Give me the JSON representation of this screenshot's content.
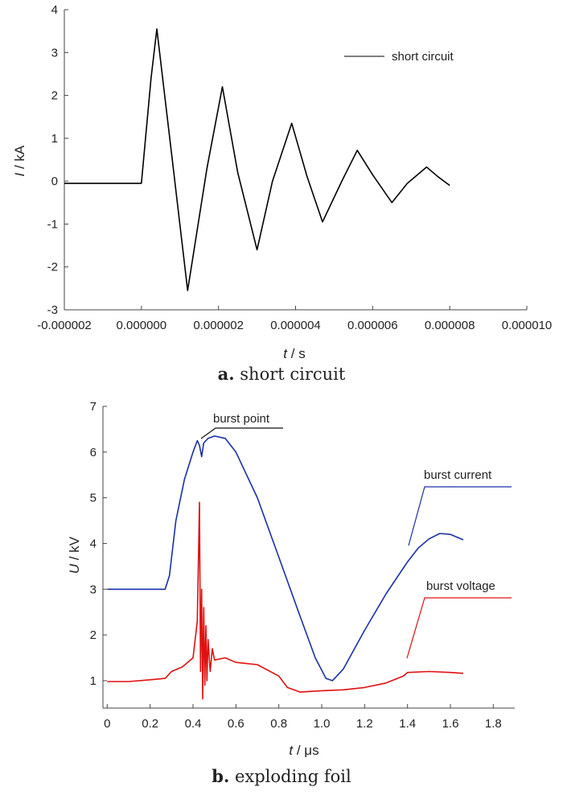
{
  "chart_data": [
    {
      "type": "line",
      "caption_letter": "a.",
      "caption_text": "short circuit",
      "xlabel_var": "t",
      "xlabel_unit": " / s",
      "ylabel_var": "I",
      "ylabel_unit": " / kA",
      "xlim": [
        -2e-06,
        1e-05
      ],
      "ylim": [
        -3,
        4
      ],
      "xticks": [
        "-0.000002",
        "0.000000",
        "0.000002",
        "0.000004",
        "0.000006",
        "0.000008",
        "0.000010"
      ],
      "yticks": [
        "-3",
        "-2",
        "-1",
        "0",
        "1",
        "2",
        "3",
        "4"
      ],
      "legend_position": "top-right",
      "series": [
        {
          "name": "short circuit",
          "color": "#000000",
          "x": [
            -2e-06,
            0.0,
            2.5e-07,
            4e-07,
            8e-07,
            1.2e-06,
            1.7e-06,
            2.1e-06,
            2.5e-06,
            3e-06,
            3.4e-06,
            3.9e-06,
            4.3e-06,
            4.7e-06,
            5.2e-06,
            5.6e-06,
            6e-06,
            6.5e-06,
            6.9e-06,
            7.4e-06,
            7.7e-06,
            8e-06
          ],
          "y": [
            -0.05,
            -0.05,
            2.4,
            3.55,
            0.5,
            -2.55,
            0.3,
            2.2,
            0.2,
            -1.6,
            0.0,
            1.35,
            0.1,
            -0.95,
            0.0,
            0.72,
            0.15,
            -0.5,
            -0.05,
            0.33,
            0.1,
            -0.1
          ]
        }
      ]
    },
    {
      "type": "line",
      "caption_letter": "b.",
      "caption_text": "exploding foil",
      "xlabel_var": "t",
      "xlabel_unit": " / μs",
      "ylabel_var": "U",
      "ylabel_unit": " / kV",
      "xlim": [
        -0.02,
        1.9
      ],
      "ylim": [
        0.4,
        7.0
      ],
      "xticks": [
        "0",
        "0.2",
        "0.4",
        "0.6",
        "0.8",
        "1.0",
        "1.2",
        "1.4",
        "1.6",
        "1.8"
      ],
      "yticks": [
        "1",
        "2",
        "3",
        "4",
        "5",
        "6",
        "7"
      ],
      "annotations": [
        {
          "text": "burst point",
          "x": 0.44,
          "y": 6.35
        },
        {
          "text": "burst current",
          "x": 1.4,
          "y": 3.8
        },
        {
          "text": "burst voltage",
          "x": 1.39,
          "y": 1.2
        }
      ],
      "series": [
        {
          "name": "burst current",
          "color": "#1c2fa8",
          "x": [
            0.0,
            0.27,
            0.29,
            0.32,
            0.36,
            0.4,
            0.42,
            0.43,
            0.44,
            0.45,
            0.47,
            0.5,
            0.55,
            0.6,
            0.7,
            0.8,
            0.9,
            0.97,
            1.02,
            1.05,
            1.1,
            1.2,
            1.3,
            1.4,
            1.45,
            1.5,
            1.55,
            1.6,
            1.66
          ],
          "y": [
            3.0,
            3.0,
            3.3,
            4.5,
            5.4,
            6.0,
            6.25,
            6.15,
            5.9,
            6.2,
            6.3,
            6.35,
            6.3,
            6.0,
            5.0,
            3.7,
            2.4,
            1.5,
            1.05,
            1.0,
            1.25,
            2.1,
            2.9,
            3.6,
            3.9,
            4.1,
            4.22,
            4.2,
            4.08
          ]
        },
        {
          "name": "burst voltage",
          "color": "#e01010",
          "x": [
            0.0,
            0.1,
            0.2,
            0.27,
            0.3,
            0.35,
            0.4,
            0.42,
            0.43,
            0.435,
            0.44,
            0.445,
            0.45,
            0.455,
            0.46,
            0.465,
            0.47,
            0.48,
            0.49,
            0.5,
            0.55,
            0.6,
            0.7,
            0.8,
            0.84,
            0.9,
            1.0,
            1.1,
            1.2,
            1.3,
            1.38,
            1.4,
            1.5,
            1.6,
            1.66
          ],
          "y": [
            0.98,
            0.98,
            1.02,
            1.05,
            1.2,
            1.3,
            1.5,
            2.3,
            4.9,
            1.2,
            3.0,
            0.6,
            2.6,
            0.9,
            2.2,
            1.0,
            1.9,
            1.2,
            1.7,
            1.45,
            1.5,
            1.4,
            1.35,
            1.1,
            0.85,
            0.75,
            0.78,
            0.8,
            0.85,
            0.95,
            1.1,
            1.18,
            1.2,
            1.18,
            1.16
          ]
        }
      ]
    }
  ]
}
